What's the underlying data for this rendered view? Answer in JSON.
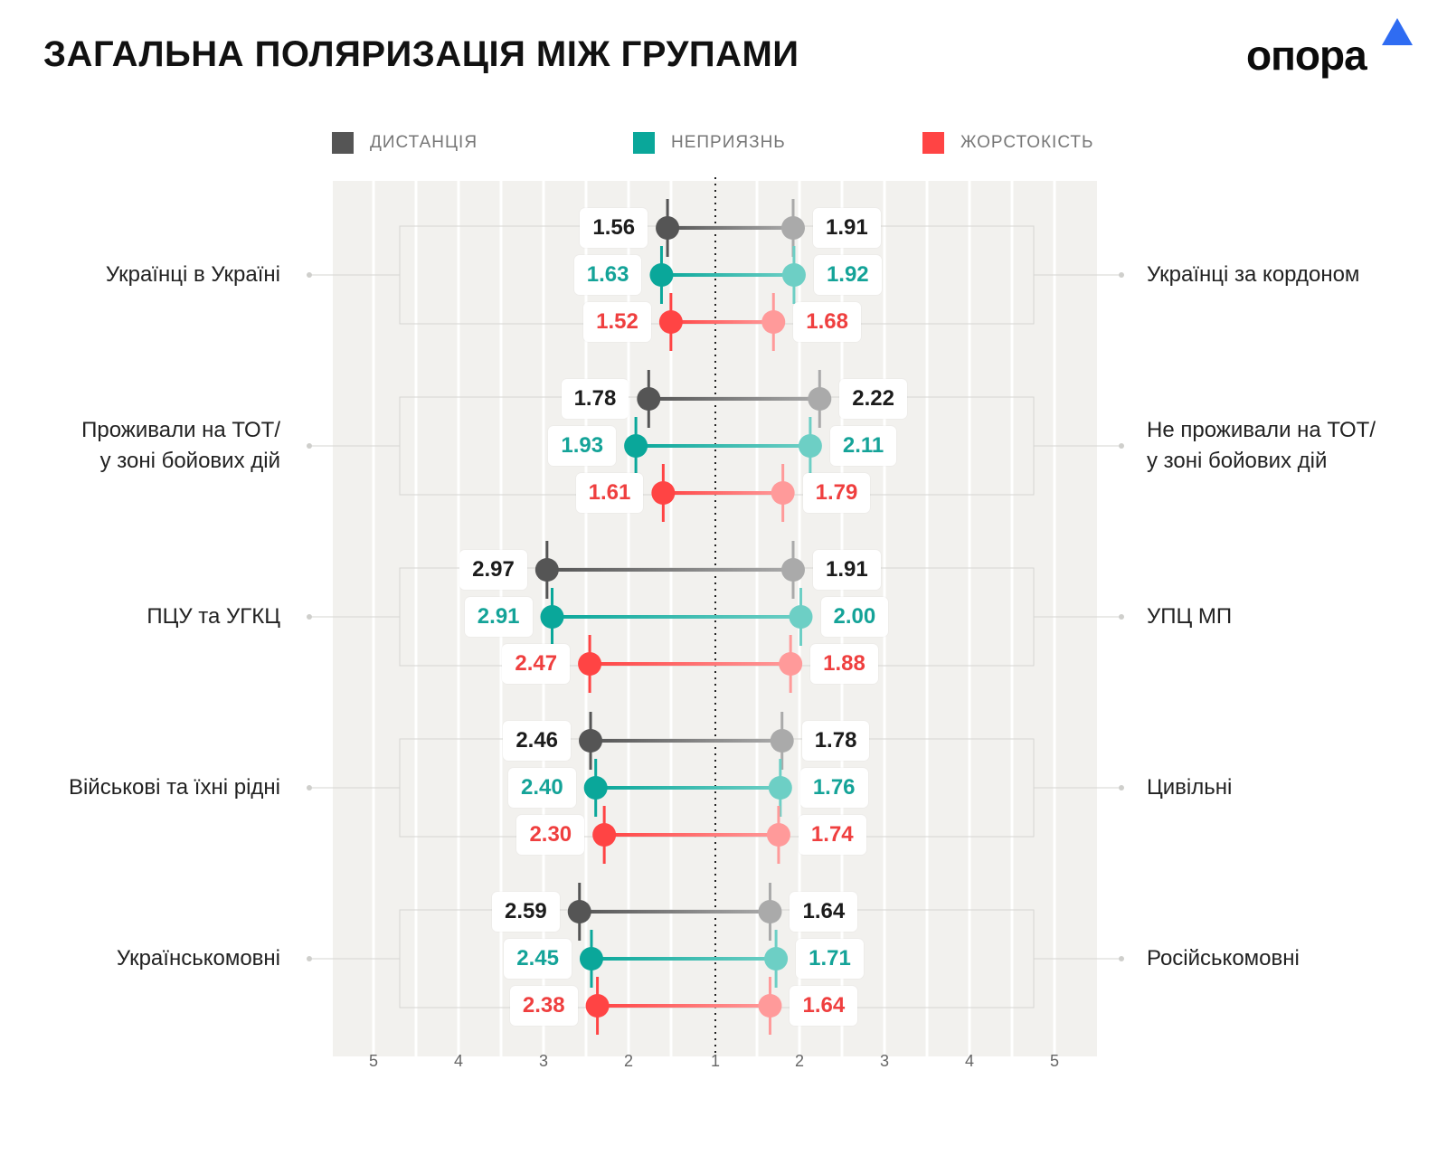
{
  "title": "ЗАГАЛЬНА ПОЛЯРИЗАЦІЯ МІЖ ГРУПАМИ",
  "logo": {
    "text": "опора",
    "color": "#2f6cf2"
  },
  "colors": {
    "distance_dark": "#555555",
    "distance_light": "#aaaaaa",
    "hostility_dark": "#0aa79a",
    "hostility_light": "#6dcfc5",
    "cruelty_dark": "#ff4444",
    "cruelty_light": "#ff9a9a",
    "panel_bg": "#f2f1ee",
    "distance_text": "#1c1c1c",
    "hostility_text": "#14a398",
    "cruelty_text": "#ef3f3f"
  },
  "legend": [
    {
      "label": "ДИСТАНЦІЯ",
      "color": "#555555"
    },
    {
      "label": "НЕПРИЯЗНЬ",
      "color": "#0aa79a"
    },
    {
      "label": "ЖОРСТОКІСТЬ",
      "color": "#ff4444"
    }
  ],
  "axis_ticks": [
    "5",
    "4",
    "3",
    "2",
    "1",
    "2",
    "3",
    "4",
    "5"
  ],
  "chart_data": {
    "type": "dumbbell",
    "title": "ЗАГАЛЬНА ПОЛЯРИЗАЦІЯ МІЖ ГРУПАМИ",
    "scale_min": 1,
    "scale_max": 5,
    "series_names": [
      "ДИСТАНЦІЯ",
      "НЕПРИЯЗНЬ",
      "ЖОРСТОКІСТЬ"
    ],
    "groups": [
      {
        "left_label": "Українці в Україні",
        "right_label": "Українці за кордоном",
        "rows": [
          {
            "series": "ДИСТАНЦІЯ",
            "left": 1.56,
            "right": 1.91,
            "left_text": "1.56",
            "right_text": "1.91"
          },
          {
            "series": "НЕПРИЯЗНЬ",
            "left": 1.63,
            "right": 1.92,
            "left_text": "1.63",
            "right_text": "1.92"
          },
          {
            "series": "ЖОРСТОКІСТЬ",
            "left": 1.52,
            "right": 1.68,
            "left_text": "1.52",
            "right_text": "1.68"
          }
        ]
      },
      {
        "left_label": "Проживали на ТОТ/\nу зоні бойових дій",
        "right_label": "Не проживали на ТОТ/\nу зоні бойових дій",
        "rows": [
          {
            "series": "ДИСТАНЦІЯ",
            "left": 1.78,
            "right": 2.22,
            "left_text": "1.78",
            "right_text": "2.22"
          },
          {
            "series": "НЕПРИЯЗНЬ",
            "left": 1.93,
            "right": 2.11,
            "left_text": "1.93",
            "right_text": "2.11"
          },
          {
            "series": "ЖОРСТОКІСТЬ",
            "left": 1.61,
            "right": 1.79,
            "left_text": "1.61",
            "right_text": "1.79"
          }
        ]
      },
      {
        "left_label": "ПЦУ та УГКЦ",
        "right_label": "УПЦ МП",
        "rows": [
          {
            "series": "ДИСТАНЦІЯ",
            "left": 2.97,
            "right": 1.91,
            "left_text": "2.97",
            "right_text": "1.91"
          },
          {
            "series": "НЕПРИЯЗНЬ",
            "left": 2.91,
            "right": 2.0,
            "left_text": "2.91",
            "right_text": "2.00"
          },
          {
            "series": "ЖОРСТОКІСТЬ",
            "left": 2.47,
            "right": 1.88,
            "left_text": "2.47",
            "right_text": "1.88"
          }
        ]
      },
      {
        "left_label": "Військові та їхні рідні",
        "right_label": "Цивільні",
        "rows": [
          {
            "series": "ДИСТАНЦІЯ",
            "left": 2.46,
            "right": 1.78,
            "left_text": "2.46",
            "right_text": "1.78"
          },
          {
            "series": "НЕПРИЯЗНЬ",
            "left": 2.4,
            "right": 1.76,
            "left_text": "2.40",
            "right_text": "1.76"
          },
          {
            "series": "ЖОРСТОКІСТЬ",
            "left": 2.3,
            "right": 1.74,
            "left_text": "2.30",
            "right_text": "1.74"
          }
        ]
      },
      {
        "left_label": "Українськомовні",
        "right_label": "Російськомовні",
        "rows": [
          {
            "series": "ДИСТАНЦІЯ",
            "left": 2.59,
            "right": 1.64,
            "left_text": "2.59",
            "right_text": "1.64"
          },
          {
            "series": "НЕПРИЯЗНЬ",
            "left": 2.45,
            "right": 1.71,
            "left_text": "2.45",
            "right_text": "1.71"
          },
          {
            "series": "ЖОРСТОКІСТЬ",
            "left": 2.38,
            "right": 1.64,
            "left_text": "2.38",
            "right_text": "1.64"
          }
        ]
      }
    ]
  }
}
